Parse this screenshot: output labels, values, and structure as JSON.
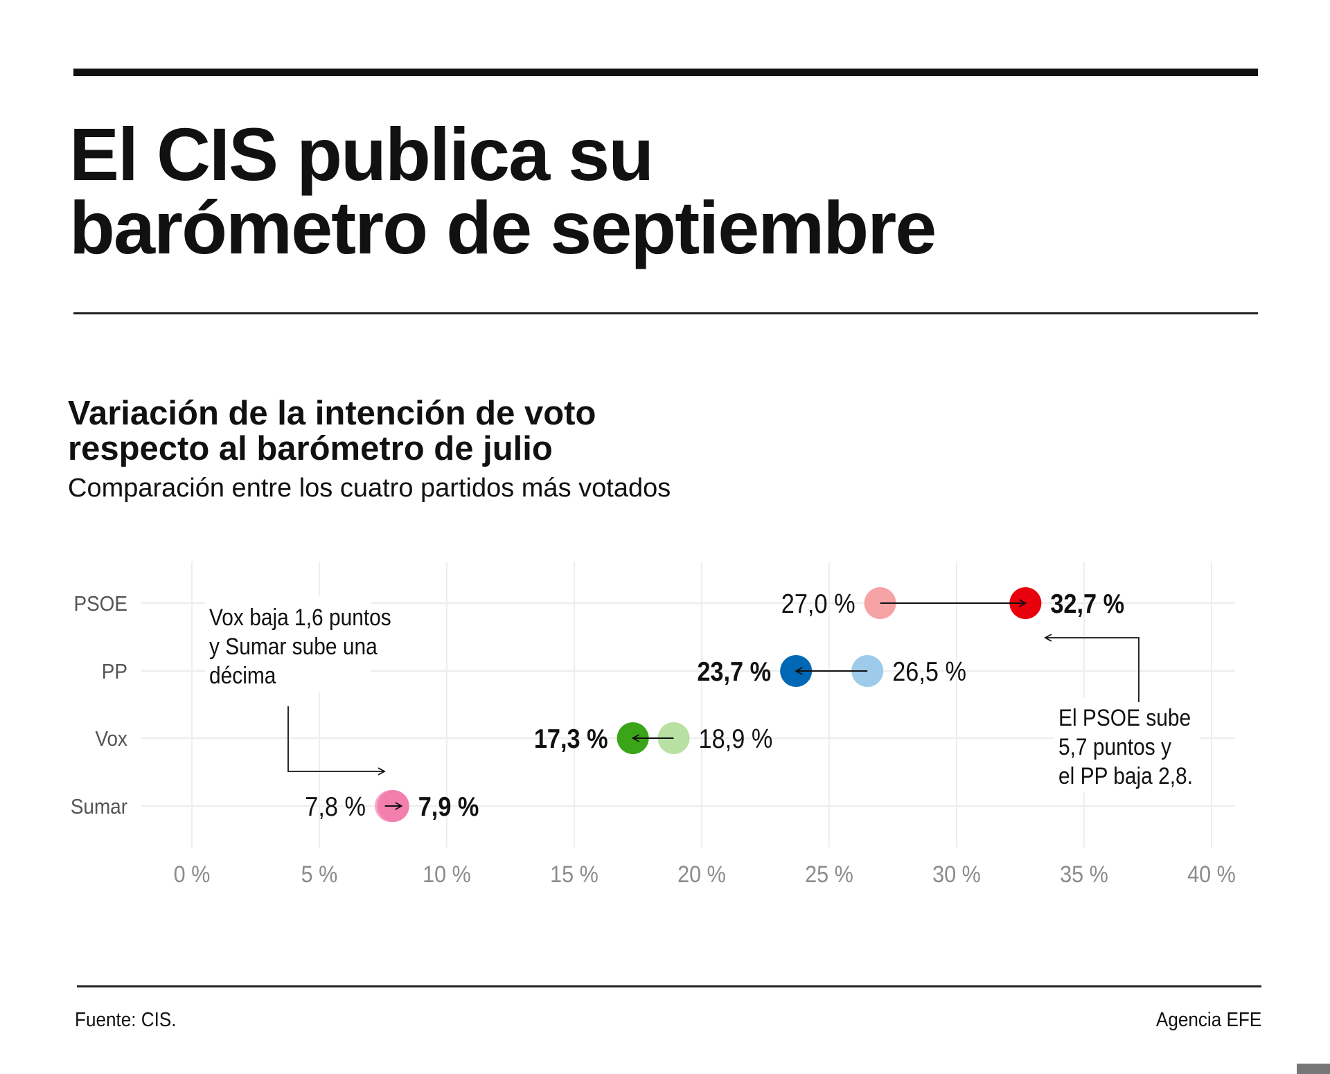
{
  "header": {
    "title_line1": "El CIS publica su",
    "title_line2": "barómetro de septiembre"
  },
  "chart_data": {
    "type": "dumbbell",
    "title_line1": "Variación de la intención de voto",
    "title_line2": "respecto al barómetro de julio",
    "subtitle": "Comparación entre los cuatro partidos más votados",
    "xlim": [
      0,
      40
    ],
    "x_ticks": [
      0,
      5,
      10,
      15,
      20,
      25,
      30,
      35,
      40
    ],
    "x_tick_labels": [
      "0 %",
      "5 %",
      "10 %",
      "15 %",
      "20 %",
      "25 %",
      "30 %",
      "35 %",
      "40 %"
    ],
    "grid": true,
    "categories": [
      "PSOE",
      "PP",
      "Vox",
      "Sumar"
    ],
    "series": [
      {
        "name": "julio",
        "values": [
          27.0,
          26.5,
          18.9,
          7.8
        ],
        "labels": [
          "27,0 %",
          "26,5 %",
          "18,9 %",
          "7,8 %"
        ],
        "colors": [
          "#f6a3a5",
          "#9dcbe9",
          "#b7e0a2",
          "#f7a6c8"
        ]
      },
      {
        "name": "septiembre",
        "values": [
          32.7,
          23.7,
          17.3,
          7.9
        ],
        "labels": [
          "32,7 %",
          "23,7 %",
          "17,3 %",
          "7,9 %"
        ],
        "colors": [
          "#e8000c",
          "#0068b4",
          "#3aa519",
          "#f27fae"
        ]
      }
    ],
    "annotations": [
      {
        "lines": [
          "Vox baja 1,6 puntos",
          "y Sumar sube una",
          "décima"
        ]
      },
      {
        "lines": [
          "El PSOE sube",
          "5,7 puntos y",
          "el PP baja 2,8."
        ]
      }
    ]
  },
  "footer": {
    "source": "Fuente: CIS.",
    "credit": "Agencia EFE"
  },
  "colors": {
    "text": "#111111",
    "axis_text": "#8c8c8c",
    "grid": "#eeeeee"
  }
}
